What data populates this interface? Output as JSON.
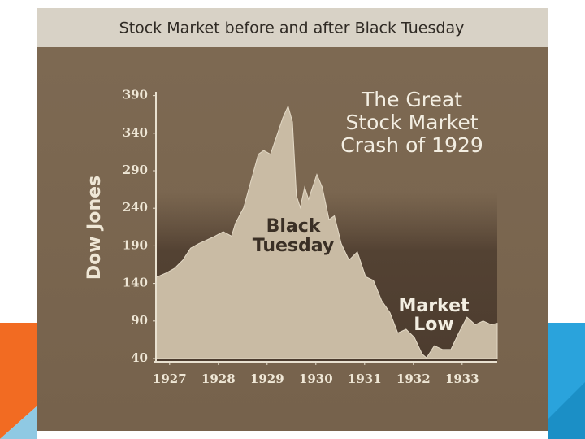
{
  "chart_data": {
    "type": "area",
    "title": "Stock Market before and after Black Tuesday",
    "y_label": "Dow Jones",
    "color": "#c9bba4",
    "x": [
      1926.72,
      1926.93,
      1927.1,
      1927.27,
      1927.43,
      1927.6,
      1927.77,
      1927.93,
      1928.1,
      1928.27,
      1928.35,
      1928.52,
      1928.68,
      1928.82,
      1928.93,
      1929.07,
      1929.18,
      1929.32,
      1929.43,
      1929.52,
      1929.6,
      1929.68,
      1929.77,
      1929.85,
      1930.02,
      1930.13,
      1930.27,
      1930.38,
      1930.52,
      1930.68,
      1930.85,
      1931.02,
      1931.18,
      1931.35,
      1931.52,
      1931.68,
      1931.85,
      1932.02,
      1932.18,
      1932.27,
      1932.43,
      1932.6,
      1932.77,
      1932.93,
      1933.1,
      1933.27,
      1933.43,
      1933.6,
      1933.72
    ],
    "values": [
      148,
      154,
      160,
      171,
      187,
      193,
      198,
      203,
      209,
      203,
      220,
      241,
      279,
      312,
      317,
      312,
      333,
      360,
      376,
      355,
      257,
      241,
      268,
      252,
      285,
      268,
      225,
      230,
      193,
      171,
      182,
      149,
      144,
      117,
      101,
      74,
      79,
      68,
      46,
      41,
      57,
      52,
      52,
      74,
      95,
      85,
      90,
      85,
      87
    ],
    "xlim": [
      1926.72,
      1933.72
    ],
    "xticks": [
      1927,
      1928,
      1929,
      1930,
      1931,
      1932,
      1933
    ],
    "ylim": [
      40,
      395
    ],
    "yticks": [
      40,
      90,
      140,
      190,
      240,
      290,
      340,
      390
    ],
    "annotations": [
      {
        "lines": [
          "The Great",
          "Stock Market",
          "Crash of 1929"
        ]
      },
      {
        "lines": [
          "Black",
          "Tuesday"
        ]
      },
      {
        "lines": [
          "Market",
          "Low"
        ]
      }
    ]
  }
}
